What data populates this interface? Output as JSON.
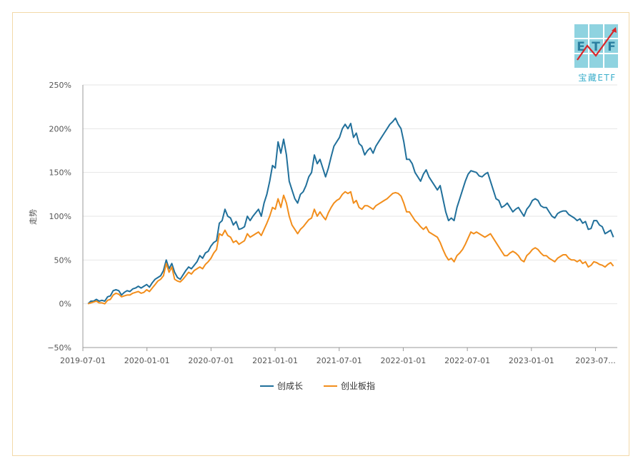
{
  "logo": {
    "letters": [
      "E",
      "T",
      "F"
    ],
    "caption": "宝藏ETF"
  },
  "colors": {
    "series1": "#21709b",
    "series2": "#f28e1c",
    "grid": "#e6e6e6",
    "axis": "#999999",
    "logo": "#8fd3e0",
    "logo_dark": "#3aaecb",
    "arrow": "#d9262a",
    "frame": "#f3d9a8"
  },
  "chart_data": {
    "type": "line",
    "title": "",
    "xlabel": "",
    "ylabel": "走势",
    "ylim": [
      -50,
      250
    ],
    "xlim": [
      2019.5,
      2023.67
    ],
    "yticks": [
      -50,
      0,
      50,
      100,
      150,
      200,
      250
    ],
    "ytick_labels": [
      "−50%",
      "0%",
      "50%",
      "100%",
      "150%",
      "200%",
      "250%"
    ],
    "xticks": [
      2019.5,
      2020.0,
      2020.5,
      2021.0,
      2021.5,
      2022.0,
      2022.5,
      2023.0,
      2023.5
    ],
    "xtick_labels": [
      "2019-07-01",
      "2020-01-01",
      "2020-07-01",
      "2021-01-01",
      "2021-07-01",
      "2022-01-01",
      "2022-07-01",
      "2023-01-01",
      "2023-07..."
    ],
    "legend": {
      "position": "bottom-center"
    },
    "series": [
      {
        "name": "创成长",
        "color": "#21709b",
        "x_start": 2019.54,
        "x_end": 2023.64,
        "values": [
          0,
          3,
          3,
          5,
          3,
          4,
          3,
          8,
          9,
          15,
          16,
          15,
          10,
          13,
          15,
          14,
          17,
          18,
          20,
          18,
          20,
          22,
          19,
          24,
          28,
          30,
          32,
          38,
          50,
          40,
          46,
          36,
          30,
          28,
          33,
          38,
          42,
          40,
          44,
          48,
          55,
          52,
          58,
          60,
          66,
          70,
          72,
          92,
          95,
          108,
          100,
          98,
          90,
          94,
          85,
          86,
          88,
          100,
          95,
          100,
          104,
          108,
          100,
          115,
          125,
          140,
          158,
          155,
          185,
          172,
          188,
          170,
          140,
          130,
          120,
          115,
          125,
          128,
          135,
          145,
          150,
          170,
          160,
          165,
          155,
          145,
          155,
          168,
          180,
          185,
          190,
          200,
          205,
          200,
          206,
          190,
          195,
          183,
          180,
          170,
          175,
          178,
          172,
          180,
          185,
          190,
          195,
          200,
          205,
          208,
          212,
          205,
          200,
          185,
          165,
          165,
          160,
          150,
          145,
          140,
          148,
          153,
          145,
          140,
          135,
          130,
          135,
          120,
          105,
          95,
          98,
          95,
          110,
          120,
          130,
          140,
          148,
          152,
          151,
          150,
          146,
          145,
          148,
          150,
          140,
          130,
          120,
          118,
          110,
          112,
          115,
          110,
          105,
          108,
          110,
          105,
          100,
          108,
          112,
          118,
          120,
          118,
          112,
          110,
          110,
          105,
          100,
          98,
          103,
          105,
          106,
          106,
          102,
          100,
          98,
          95,
          97,
          92,
          94,
          85,
          86,
          95,
          95,
          90,
          88,
          80,
          82,
          84,
          76
        ],
        "cut": [
          [
            0,
            9,
            20
          ],
          [
            9,
            60,
            118
          ],
          [
            60,
            95,
            170
          ],
          [
            95,
            140,
            200
          ]
        ]
      },
      {
        "name": "创业板指",
        "color": "#f28e1c",
        "x_start": 2019.54,
        "x_end": 2023.64,
        "values": [
          0,
          1,
          2,
          3,
          1,
          1,
          0,
          4,
          5,
          10,
          12,
          11,
          8,
          9,
          10,
          10,
          12,
          13,
          14,
          12,
          13,
          16,
          14,
          18,
          22,
          26,
          28,
          32,
          46,
          36,
          42,
          28,
          26,
          25,
          28,
          32,
          36,
          34,
          38,
          40,
          42,
          40,
          45,
          48,
          52,
          58,
          62,
          80,
          78,
          84,
          78,
          76,
          70,
          72,
          68,
          70,
          72,
          80,
          76,
          78,
          80,
          82,
          78,
          85,
          92,
          100,
          110,
          108,
          120,
          110,
          124,
          115,
          100,
          90,
          85,
          80,
          85,
          88,
          92,
          96,
          98,
          108,
          100,
          105,
          100,
          96,
          104,
          110,
          115,
          118,
          120,
          125,
          128,
          126,
          128,
          115,
          118,
          110,
          108,
          112,
          112,
          110,
          108,
          112,
          114,
          116,
          118,
          120,
          123,
          126,
          127,
          126,
          123,
          115,
          105,
          105,
          100,
          95,
          92,
          88,
          85,
          88,
          82,
          80,
          78,
          76,
          70,
          62,
          55,
          50,
          52,
          48,
          55,
          58,
          62,
          68,
          75,
          82,
          80,
          82,
          80,
          78,
          76,
          78,
          80,
          75,
          70,
          65,
          60,
          55,
          55,
          58,
          60,
          58,
          55,
          50,
          48,
          55,
          58,
          62,
          64,
          62,
          58,
          55,
          55,
          52,
          50,
          48,
          52,
          54,
          56,
          56,
          52,
          50,
          50,
          48,
          50,
          46,
          48,
          42,
          44,
          48,
          47,
          45,
          44,
          42,
          45,
          47,
          43
        ]
      }
    ]
  },
  "legend_items": [
    {
      "label": "创成长",
      "color": "#21709b"
    },
    {
      "label": "创业板指",
      "color": "#f28e1c"
    }
  ]
}
